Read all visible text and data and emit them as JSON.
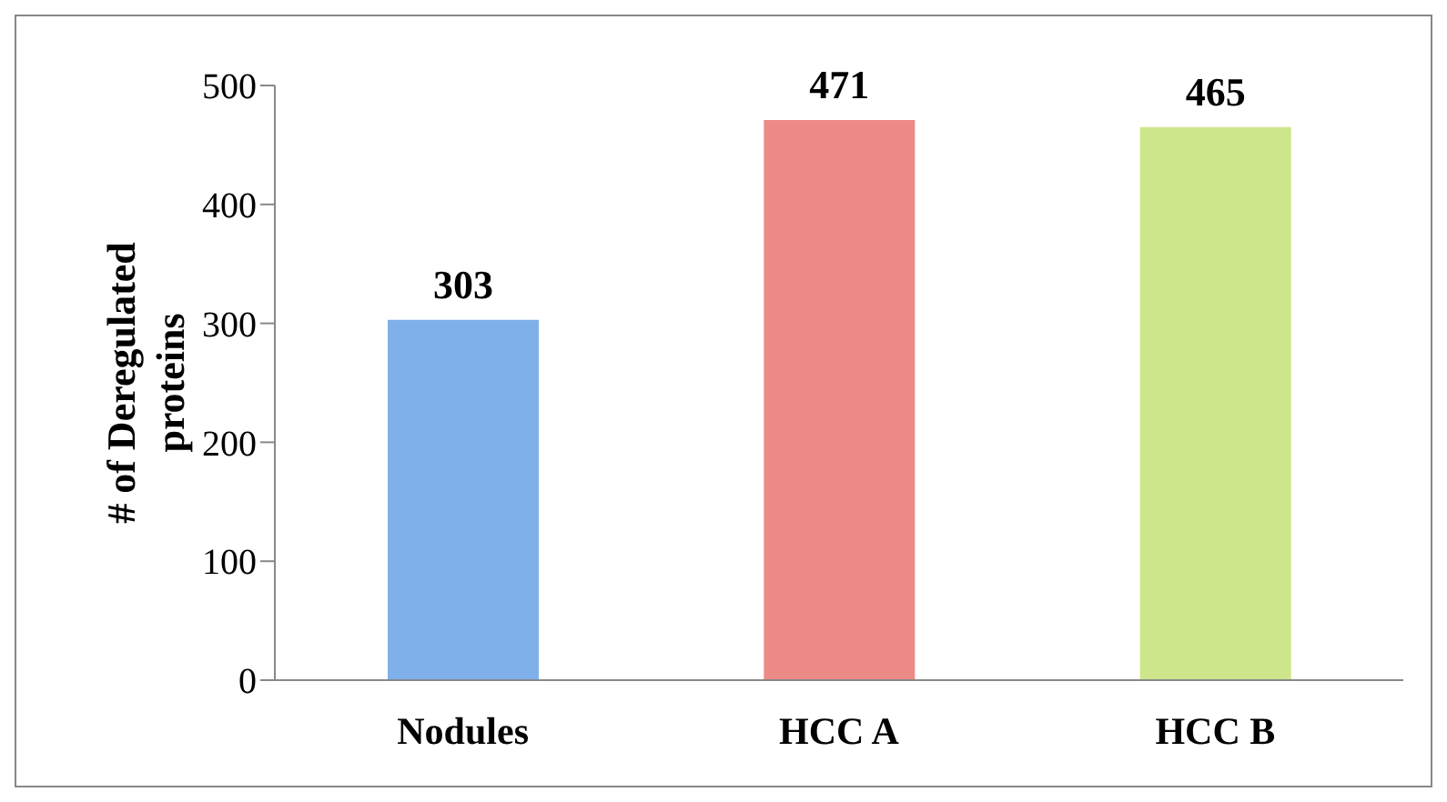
{
  "chart_data": {
    "type": "bar",
    "ylabel": "# of Deregulated proteins",
    "categories": [
      "Nodules",
      "HCC A",
      "HCC B"
    ],
    "values": [
      303,
      471,
      465
    ],
    "colors": [
      "#7fb0ea",
      "#ec8a88",
      "#cde68c"
    ],
    "ylim": [
      0,
      500
    ],
    "yticks": [
      0,
      100,
      200,
      300,
      400,
      500
    ],
    "grid": false,
    "data_labels": true
  }
}
